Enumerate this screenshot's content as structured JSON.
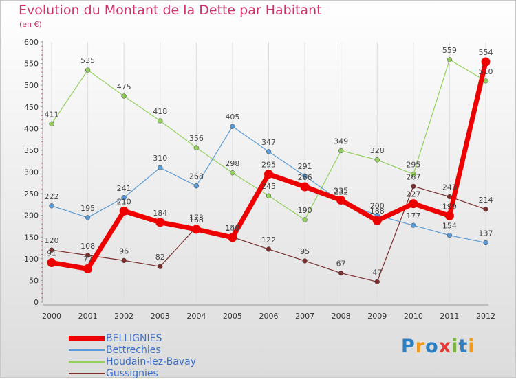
{
  "title": "Evolution du Montant de la Dette par Habitant",
  "unit": "(en €)",
  "logo": {
    "letters": [
      "P",
      "r",
      "o",
      "x",
      "i",
      "t",
      "i"
    ],
    "colors": [
      "#2e7fc2",
      "#f39a1e",
      "#2e7fc2",
      "#e53935",
      "#7cb342",
      "#2e7fc2",
      "#f39a1e"
    ]
  },
  "chart_data": {
    "type": "line",
    "title": "Evolution du Montant de la Dette par Habitant",
    "ylabel": "(en €)",
    "xlabel": "",
    "x": [
      "2000",
      "2001",
      "2002",
      "2003",
      "2004",
      "2005",
      "2006",
      "2007",
      "2008",
      "2009",
      "2010",
      "2011",
      "2012"
    ],
    "ylim": [
      0,
      600
    ],
    "yticks": [
      "0",
      "50",
      "100",
      "150",
      "200",
      "250",
      "300",
      "350",
      "400",
      "450",
      "500",
      "550",
      "600"
    ],
    "grid": "vertical",
    "legend": "bottom-left",
    "series": [
      {
        "name": "Houdain-lez-Bavay",
        "color": "#93d05b",
        "values": [
          411,
          535,
          475,
          418,
          356,
          298,
          245,
          190,
          349,
          328,
          295,
          559,
          510
        ],
        "labels": [
          "411",
          "535",
          "475",
          "418",
          "356",
          "298",
          "245",
          "190",
          "349",
          "328",
          "295",
          "559",
          "510"
        ]
      },
      {
        "name": "Bettrechies",
        "color": "#5b9bd5",
        "values": [
          222,
          195,
          241,
          310,
          268,
          405,
          347,
          291,
          232,
          200,
          177,
          154,
          137
        ],
        "labels": [
          "222",
          "195",
          "241",
          "310",
          "268",
          "405",
          "347",
          "291",
          "232",
          "200",
          "177",
          "154",
          "137"
        ]
      },
      {
        "name": "Gussignies",
        "color": "#7b2f2f",
        "values": [
          120,
          108,
          96,
          82,
          173,
          150,
          122,
          95,
          67,
          47,
          267,
          243,
          214
        ],
        "labels": [
          "120",
          "108",
          "96",
          "82",
          "173",
          "150",
          "122",
          "95",
          "67",
          "47",
          "267",
          "243",
          "214"
        ]
      },
      {
        "name": "BELLIGNIES",
        "color": "#ee0000",
        "values": [
          91,
          77,
          210,
          184,
          168,
          149,
          295,
          266,
          235,
          188,
          227,
          199,
          554
        ],
        "labels": [
          "91",
          "77",
          "210",
          "184",
          "168",
          "149",
          "295",
          "266",
          "235",
          "188",
          "227",
          "199",
          "554"
        ]
      }
    ],
    "legend_order": [
      "BELLIGNIES",
      "Bettrechies",
      "Houdain-lez-Bavay",
      "Gussignies"
    ]
  }
}
